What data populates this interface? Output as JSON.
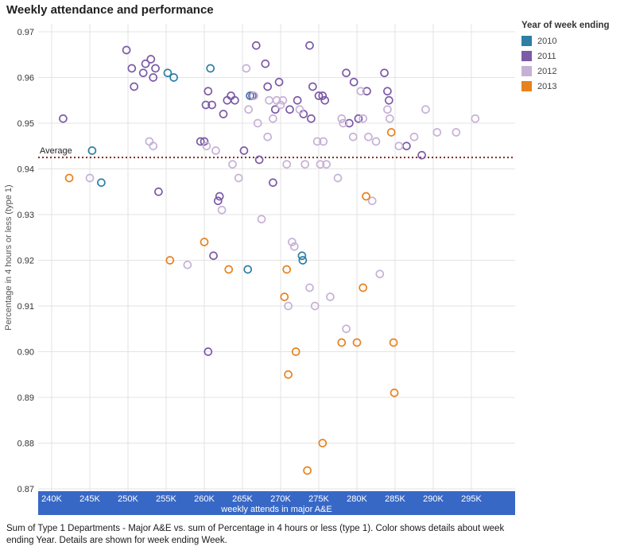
{
  "title": "Weekly attendance and performance",
  "caption": "Sum of Type 1 Departments - Major A&E vs. sum of Percentage in 4 hours or less (type 1).  Color shows details about week ending Year.  Details are shown for week ending Week.",
  "legend": {
    "title": "Year of week ending"
  },
  "colors": {
    "axis_band": "#3868c6",
    "grid": "#e3e3e3",
    "average_line": "#7f2a20"
  },
  "chart_data": {
    "type": "scatter",
    "title": "Weekly attendance and performance",
    "xlabel": "weekly attends in major A&E",
    "ylabel": "Percentage in 4 hours or less (type 1)",
    "x_unit": "thousands",
    "xlim": [
      237.5,
      300.5
    ],
    "ylim": [
      0.868,
      0.972
    ],
    "x_ticks": [
      "240K",
      "245K",
      "250K",
      "255K",
      "260K",
      "265K",
      "270K",
      "275K",
      "280K",
      "285K",
      "290K",
      "295K"
    ],
    "x_tick_values": [
      240,
      245,
      250,
      255,
      260,
      265,
      270,
      275,
      280,
      285,
      290,
      295
    ],
    "y_ticks": [
      0.87,
      0.88,
      0.89,
      0.9,
      0.91,
      0.92,
      0.93,
      0.94,
      0.95,
      0.96,
      0.97
    ],
    "grid": true,
    "legend_position": "top-right",
    "average_line": {
      "label": "Average",
      "value": 0.9425
    },
    "series": [
      {
        "name": "2010",
        "color": "#2d7fa5",
        "points": [
          [
            245.3,
            0.944
          ],
          [
            246.5,
            0.937
          ],
          [
            255.2,
            0.961
          ],
          [
            256.0,
            0.96
          ],
          [
            260.8,
            0.962
          ],
          [
            266.0,
            0.956
          ],
          [
            265.7,
            0.918
          ],
          [
            272.8,
            0.921
          ],
          [
            272.9,
            0.92
          ]
        ]
      },
      {
        "name": "2011",
        "color": "#7b5aa6",
        "points": [
          [
            241.5,
            0.951
          ],
          [
            249.8,
            0.966
          ],
          [
            250.5,
            0.962
          ],
          [
            250.8,
            0.958
          ],
          [
            252.0,
            0.961
          ],
          [
            252.3,
            0.963
          ],
          [
            253.0,
            0.964
          ],
          [
            253.3,
            0.96
          ],
          [
            253.6,
            0.962
          ],
          [
            254.0,
            0.935
          ],
          [
            259.5,
            0.946
          ],
          [
            260.0,
            0.946
          ],
          [
            260.2,
            0.954
          ],
          [
            260.5,
            0.957
          ],
          [
            261.0,
            0.954
          ],
          [
            260.5,
            0.9
          ],
          [
            261.2,
            0.921
          ],
          [
            261.8,
            0.933
          ],
          [
            262.0,
            0.934
          ],
          [
            262.5,
            0.952
          ],
          [
            263.0,
            0.955
          ],
          [
            263.5,
            0.956
          ],
          [
            264.0,
            0.955
          ],
          [
            265.2,
            0.944
          ],
          [
            266.8,
            0.967
          ],
          [
            266.3,
            0.956
          ],
          [
            267.2,
            0.942
          ],
          [
            268.0,
            0.963
          ],
          [
            268.3,
            0.958
          ],
          [
            269.0,
            0.937
          ],
          [
            269.3,
            0.953
          ],
          [
            269.8,
            0.959
          ],
          [
            271.2,
            0.953
          ],
          [
            272.2,
            0.955
          ],
          [
            273.0,
            0.952
          ],
          [
            273.8,
            0.967
          ],
          [
            274.2,
            0.958
          ],
          [
            274.0,
            0.951
          ],
          [
            275.0,
            0.956
          ],
          [
            275.5,
            0.956
          ],
          [
            275.8,
            0.955
          ],
          [
            278.6,
            0.961
          ],
          [
            279.0,
            0.95
          ],
          [
            279.6,
            0.959
          ],
          [
            280.2,
            0.951
          ],
          [
            281.3,
            0.957
          ],
          [
            283.6,
            0.961
          ],
          [
            284.0,
            0.957
          ],
          [
            284.2,
            0.955
          ],
          [
            286.5,
            0.945
          ],
          [
            288.5,
            0.943
          ]
        ]
      },
      {
        "name": "2012",
        "color": "#c6b1d6",
        "points": [
          [
            245.0,
            0.938
          ],
          [
            252.8,
            0.946
          ],
          [
            253.3,
            0.945
          ],
          [
            257.8,
            0.919
          ],
          [
            260.3,
            0.945
          ],
          [
            261.5,
            0.944
          ],
          [
            262.3,
            0.931
          ],
          [
            263.7,
            0.941
          ],
          [
            264.5,
            0.938
          ],
          [
            265.5,
            0.962
          ],
          [
            265.8,
            0.953
          ],
          [
            266.5,
            0.956
          ],
          [
            267.0,
            0.95
          ],
          [
            267.5,
            0.929
          ],
          [
            268.3,
            0.947
          ],
          [
            268.5,
            0.955
          ],
          [
            269.0,
            0.951
          ],
          [
            269.5,
            0.955
          ],
          [
            270.0,
            0.954
          ],
          [
            270.3,
            0.955
          ],
          [
            270.8,
            0.941
          ],
          [
            271.0,
            0.91
          ],
          [
            271.5,
            0.924
          ],
          [
            271.8,
            0.923
          ],
          [
            272.5,
            0.953
          ],
          [
            273.2,
            0.941
          ],
          [
            273.8,
            0.914
          ],
          [
            274.5,
            0.91
          ],
          [
            274.8,
            0.946
          ],
          [
            275.2,
            0.941
          ],
          [
            275.6,
            0.946
          ],
          [
            276.0,
            0.941
          ],
          [
            276.5,
            0.912
          ],
          [
            277.5,
            0.938
          ],
          [
            278.0,
            0.951
          ],
          [
            278.2,
            0.95
          ],
          [
            278.6,
            0.905
          ],
          [
            279.5,
            0.947
          ],
          [
            280.5,
            0.957
          ],
          [
            280.8,
            0.951
          ],
          [
            281.5,
            0.947
          ],
          [
            282.0,
            0.933
          ],
          [
            282.5,
            0.946
          ],
          [
            283.0,
            0.917
          ],
          [
            284.0,
            0.953
          ],
          [
            284.3,
            0.951
          ],
          [
            285.5,
            0.945
          ],
          [
            287.5,
            0.947
          ],
          [
            289.0,
            0.953
          ],
          [
            290.5,
            0.948
          ],
          [
            293.0,
            0.948
          ],
          [
            295.5,
            0.951
          ]
        ]
      },
      {
        "name": "2013",
        "color": "#e8821d",
        "points": [
          [
            242.3,
            0.938
          ],
          [
            255.5,
            0.92
          ],
          [
            260.0,
            0.924
          ],
          [
            263.2,
            0.918
          ],
          [
            270.8,
            0.918
          ],
          [
            270.5,
            0.912
          ],
          [
            271.0,
            0.895
          ],
          [
            272.0,
            0.9
          ],
          [
            273.5,
            0.874
          ],
          [
            275.5,
            0.88
          ],
          [
            278.0,
            0.902
          ],
          [
            280.0,
            0.902
          ],
          [
            280.8,
            0.914
          ],
          [
            281.2,
            0.934
          ],
          [
            284.5,
            0.948
          ],
          [
            284.8,
            0.902
          ],
          [
            284.9,
            0.891
          ]
        ]
      }
    ]
  }
}
